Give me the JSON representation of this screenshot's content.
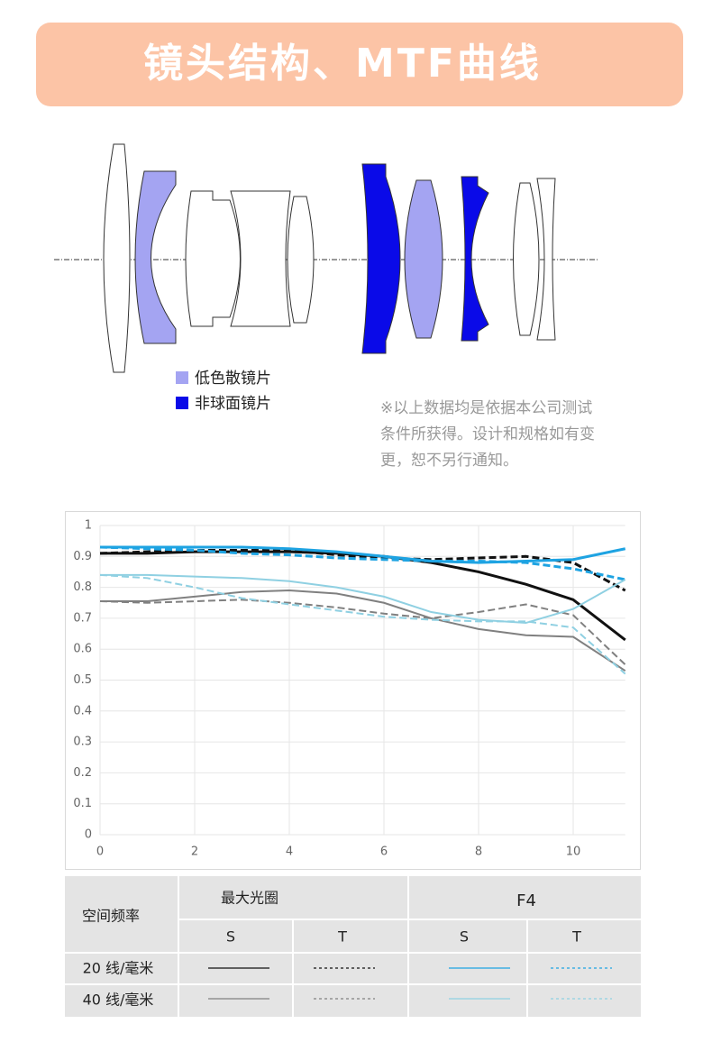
{
  "header": {
    "title": "镜头结构、MTF曲线"
  },
  "lens_diagram": {
    "legend": [
      {
        "label": "低色散镜片",
        "color": "#a4a4f2"
      },
      {
        "label": "非球面镜片",
        "color": "#0a0ae8"
      }
    ]
  },
  "note": [
    "※以上数据均是依据本公司测试",
    "条件所获得。设计和规格如有变",
    "更，恕不另行通知。"
  ],
  "chart_data": {
    "type": "line",
    "x": [
      0,
      1,
      2,
      3,
      4,
      5,
      6,
      7,
      8,
      9,
      10,
      11.1
    ],
    "xlim": [
      0,
      11.1
    ],
    "xticks": [
      0,
      2,
      4,
      6,
      8,
      10
    ],
    "ylim": [
      0,
      1
    ],
    "yticks": [
      0,
      0.1,
      0.2,
      0.3,
      0.4,
      0.5,
      0.6,
      0.7,
      0.8,
      0.9,
      1
    ],
    "grid": true,
    "series": [
      {
        "color": "#111111",
        "dashed": false,
        "values": [
          0.91,
          0.91,
          0.915,
          0.915,
          0.915,
          0.91,
          0.9,
          0.88,
          0.85,
          0.81,
          0.76,
          0.63
        ]
      },
      {
        "color": "#111111",
        "dashed": true,
        "values": [
          0.91,
          0.915,
          0.92,
          0.92,
          0.92,
          0.905,
          0.895,
          0.89,
          0.895,
          0.9,
          0.88,
          0.79
        ]
      },
      {
        "color": "#808080",
        "dashed": false,
        "values": [
          0.755,
          0.755,
          0.77,
          0.785,
          0.79,
          0.78,
          0.75,
          0.7,
          0.665,
          0.645,
          0.64,
          0.53
        ]
      },
      {
        "color": "#808080",
        "dashed": true,
        "values": [
          0.755,
          0.75,
          0.755,
          0.76,
          0.75,
          0.735,
          0.715,
          0.7,
          0.72,
          0.745,
          0.71,
          0.55
        ]
      },
      {
        "color": "#1ea3e2",
        "dashed": false,
        "values": [
          0.93,
          0.93,
          0.93,
          0.93,
          0.925,
          0.915,
          0.9,
          0.885,
          0.88,
          0.885,
          0.89,
          0.925
        ]
      },
      {
        "color": "#1ea3e2",
        "dashed": true,
        "values": [
          0.93,
          0.925,
          0.92,
          0.91,
          0.905,
          0.895,
          0.89,
          0.885,
          0.885,
          0.88,
          0.86,
          0.825
        ]
      },
      {
        "color": "#8fd0e2",
        "dashed": false,
        "values": [
          0.84,
          0.84,
          0.835,
          0.83,
          0.82,
          0.8,
          0.77,
          0.72,
          0.695,
          0.685,
          0.73,
          0.825
        ]
      },
      {
        "color": "#8fd0e2",
        "dashed": true,
        "values": [
          0.84,
          0.83,
          0.8,
          0.765,
          0.745,
          0.725,
          0.705,
          0.695,
          0.69,
          0.69,
          0.67,
          0.52
        ]
      }
    ]
  },
  "mtf_table": {
    "corner": "空间频率",
    "groups": [
      "最大光圈",
      "F4"
    ],
    "columns": [
      "S",
      "T",
      "S",
      "T"
    ],
    "rows": [
      "20 线/毫米",
      "40 线/毫米"
    ]
  }
}
